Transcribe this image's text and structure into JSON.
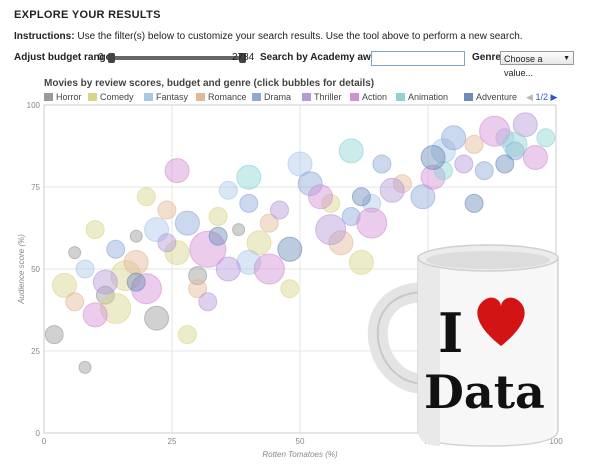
{
  "page": {
    "title": "EXPLORE YOUR RESULTS",
    "instructions_label": "Instructions:",
    "instructions_text": "Use the filter(s) below to customize your search results. Use the tool above to perform a new search."
  },
  "controls": {
    "budget_label": "Adjust budget range",
    "budget_min": "0",
    "budget_max": "2784",
    "academy_label": "Search by Academy awards",
    "academy_value": "",
    "genre_label": "Genre",
    "genre_selected": "Choose a value..."
  },
  "mug": {
    "line1": "I",
    "line2": "Data"
  },
  "chart_data": {
    "type": "scatter",
    "title": "Movies by review scores, budget and genre (click bubbles for details)",
    "xlabel": "Rotten Tomatoes (%)",
    "ylabel": "Audience score (%)",
    "xlim": [
      0,
      100
    ],
    "ylim": [
      0,
      100
    ],
    "x_ticks": [
      "0",
      "25",
      "50",
      "75",
      "100"
    ],
    "y_ticks": [
      "100",
      "75",
      "50",
      "25",
      "0"
    ],
    "grid": true,
    "legend_position": "top",
    "legend_page": "1/2",
    "series": [
      {
        "name": "Horror",
        "color": "#9a9a9a",
        "points": [
          [
            2,
            30,
            3
          ],
          [
            6,
            55,
            2
          ],
          [
            12,
            42,
            3
          ],
          [
            18,
            60,
            2
          ],
          [
            22,
            35,
            4
          ],
          [
            30,
            48,
            3
          ],
          [
            38,
            62,
            2
          ],
          [
            8,
            20,
            2
          ]
        ]
      },
      {
        "name": "Comedy",
        "color": "#d8d48a",
        "points": [
          [
            4,
            45,
            4
          ],
          [
            10,
            62,
            3
          ],
          [
            14,
            38,
            5
          ],
          [
            20,
            72,
            3
          ],
          [
            26,
            55,
            4
          ],
          [
            34,
            66,
            3
          ],
          [
            42,
            58,
            4
          ],
          [
            48,
            44,
            3
          ],
          [
            56,
            70,
            3
          ],
          [
            62,
            52,
            4
          ],
          [
            16,
            48,
            5
          ],
          [
            28,
            30,
            3
          ]
        ]
      },
      {
        "name": "Fantasy",
        "color": "#a8c8e8",
        "points": [
          [
            8,
            50,
            3
          ],
          [
            22,
            62,
            4
          ],
          [
            36,
            74,
            3
          ],
          [
            50,
            82,
            4
          ],
          [
            64,
            70,
            3
          ],
          [
            78,
            86,
            4
          ],
          [
            90,
            90,
            3
          ],
          [
            40,
            52,
            4
          ]
        ]
      },
      {
        "name": "Romance",
        "color": "#e2b896",
        "points": [
          [
            6,
            40,
            3
          ],
          [
            18,
            52,
            4
          ],
          [
            30,
            44,
            3
          ],
          [
            44,
            64,
            3
          ],
          [
            58,
            58,
            4
          ],
          [
            70,
            76,
            3
          ],
          [
            84,
            88,
            3
          ],
          [
            24,
            68,
            3
          ]
        ]
      },
      {
        "name": "Drama",
        "color": "#8ea8d8",
        "points": [
          [
            14,
            56,
            3
          ],
          [
            28,
            64,
            4
          ],
          [
            40,
            70,
            3
          ],
          [
            52,
            76,
            4
          ],
          [
            66,
            82,
            3
          ],
          [
            80,
            90,
            4
          ],
          [
            92,
            86,
            3
          ],
          [
            60,
            66,
            3
          ],
          [
            74,
            72,
            4
          ],
          [
            86,
            80,
            3
          ]
        ]
      },
      {
        "name": "Thriller",
        "color": "#b59ad8",
        "points": [
          [
            12,
            46,
            4
          ],
          [
            24,
            58,
            3
          ],
          [
            36,
            50,
            4
          ],
          [
            46,
            68,
            3
          ],
          [
            56,
            62,
            5
          ],
          [
            68,
            74,
            4
          ],
          [
            82,
            82,
            3
          ],
          [
            94,
            94,
            4
          ],
          [
            32,
            40,
            3
          ]
        ]
      },
      {
        "name": "Action",
        "color": "#d48ed4",
        "points": [
          [
            10,
            36,
            4
          ],
          [
            20,
            44,
            5
          ],
          [
            32,
            56,
            6
          ],
          [
            44,
            50,
            5
          ],
          [
            54,
            72,
            4
          ],
          [
            64,
            64,
            5
          ],
          [
            76,
            78,
            4
          ],
          [
            88,
            92,
            5
          ],
          [
            96,
            84,
            4
          ],
          [
            26,
            80,
            4
          ]
        ]
      },
      {
        "name": "Animation",
        "color": "#8ed2d2",
        "points": [
          [
            40,
            78,
            4
          ],
          [
            60,
            86,
            4
          ],
          [
            78,
            80,
            3
          ],
          [
            92,
            88,
            4
          ],
          [
            98,
            90,
            3
          ]
        ]
      },
      {
        "name": "Adventure",
        "color": "#6a8cb8",
        "points": [
          [
            18,
            46,
            3
          ],
          [
            34,
            60,
            3
          ],
          [
            48,
            56,
            4
          ],
          [
            62,
            72,
            3
          ],
          [
            76,
            84,
            4
          ],
          [
            90,
            82,
            3
          ],
          [
            84,
            70,
            3
          ]
        ]
      }
    ]
  }
}
